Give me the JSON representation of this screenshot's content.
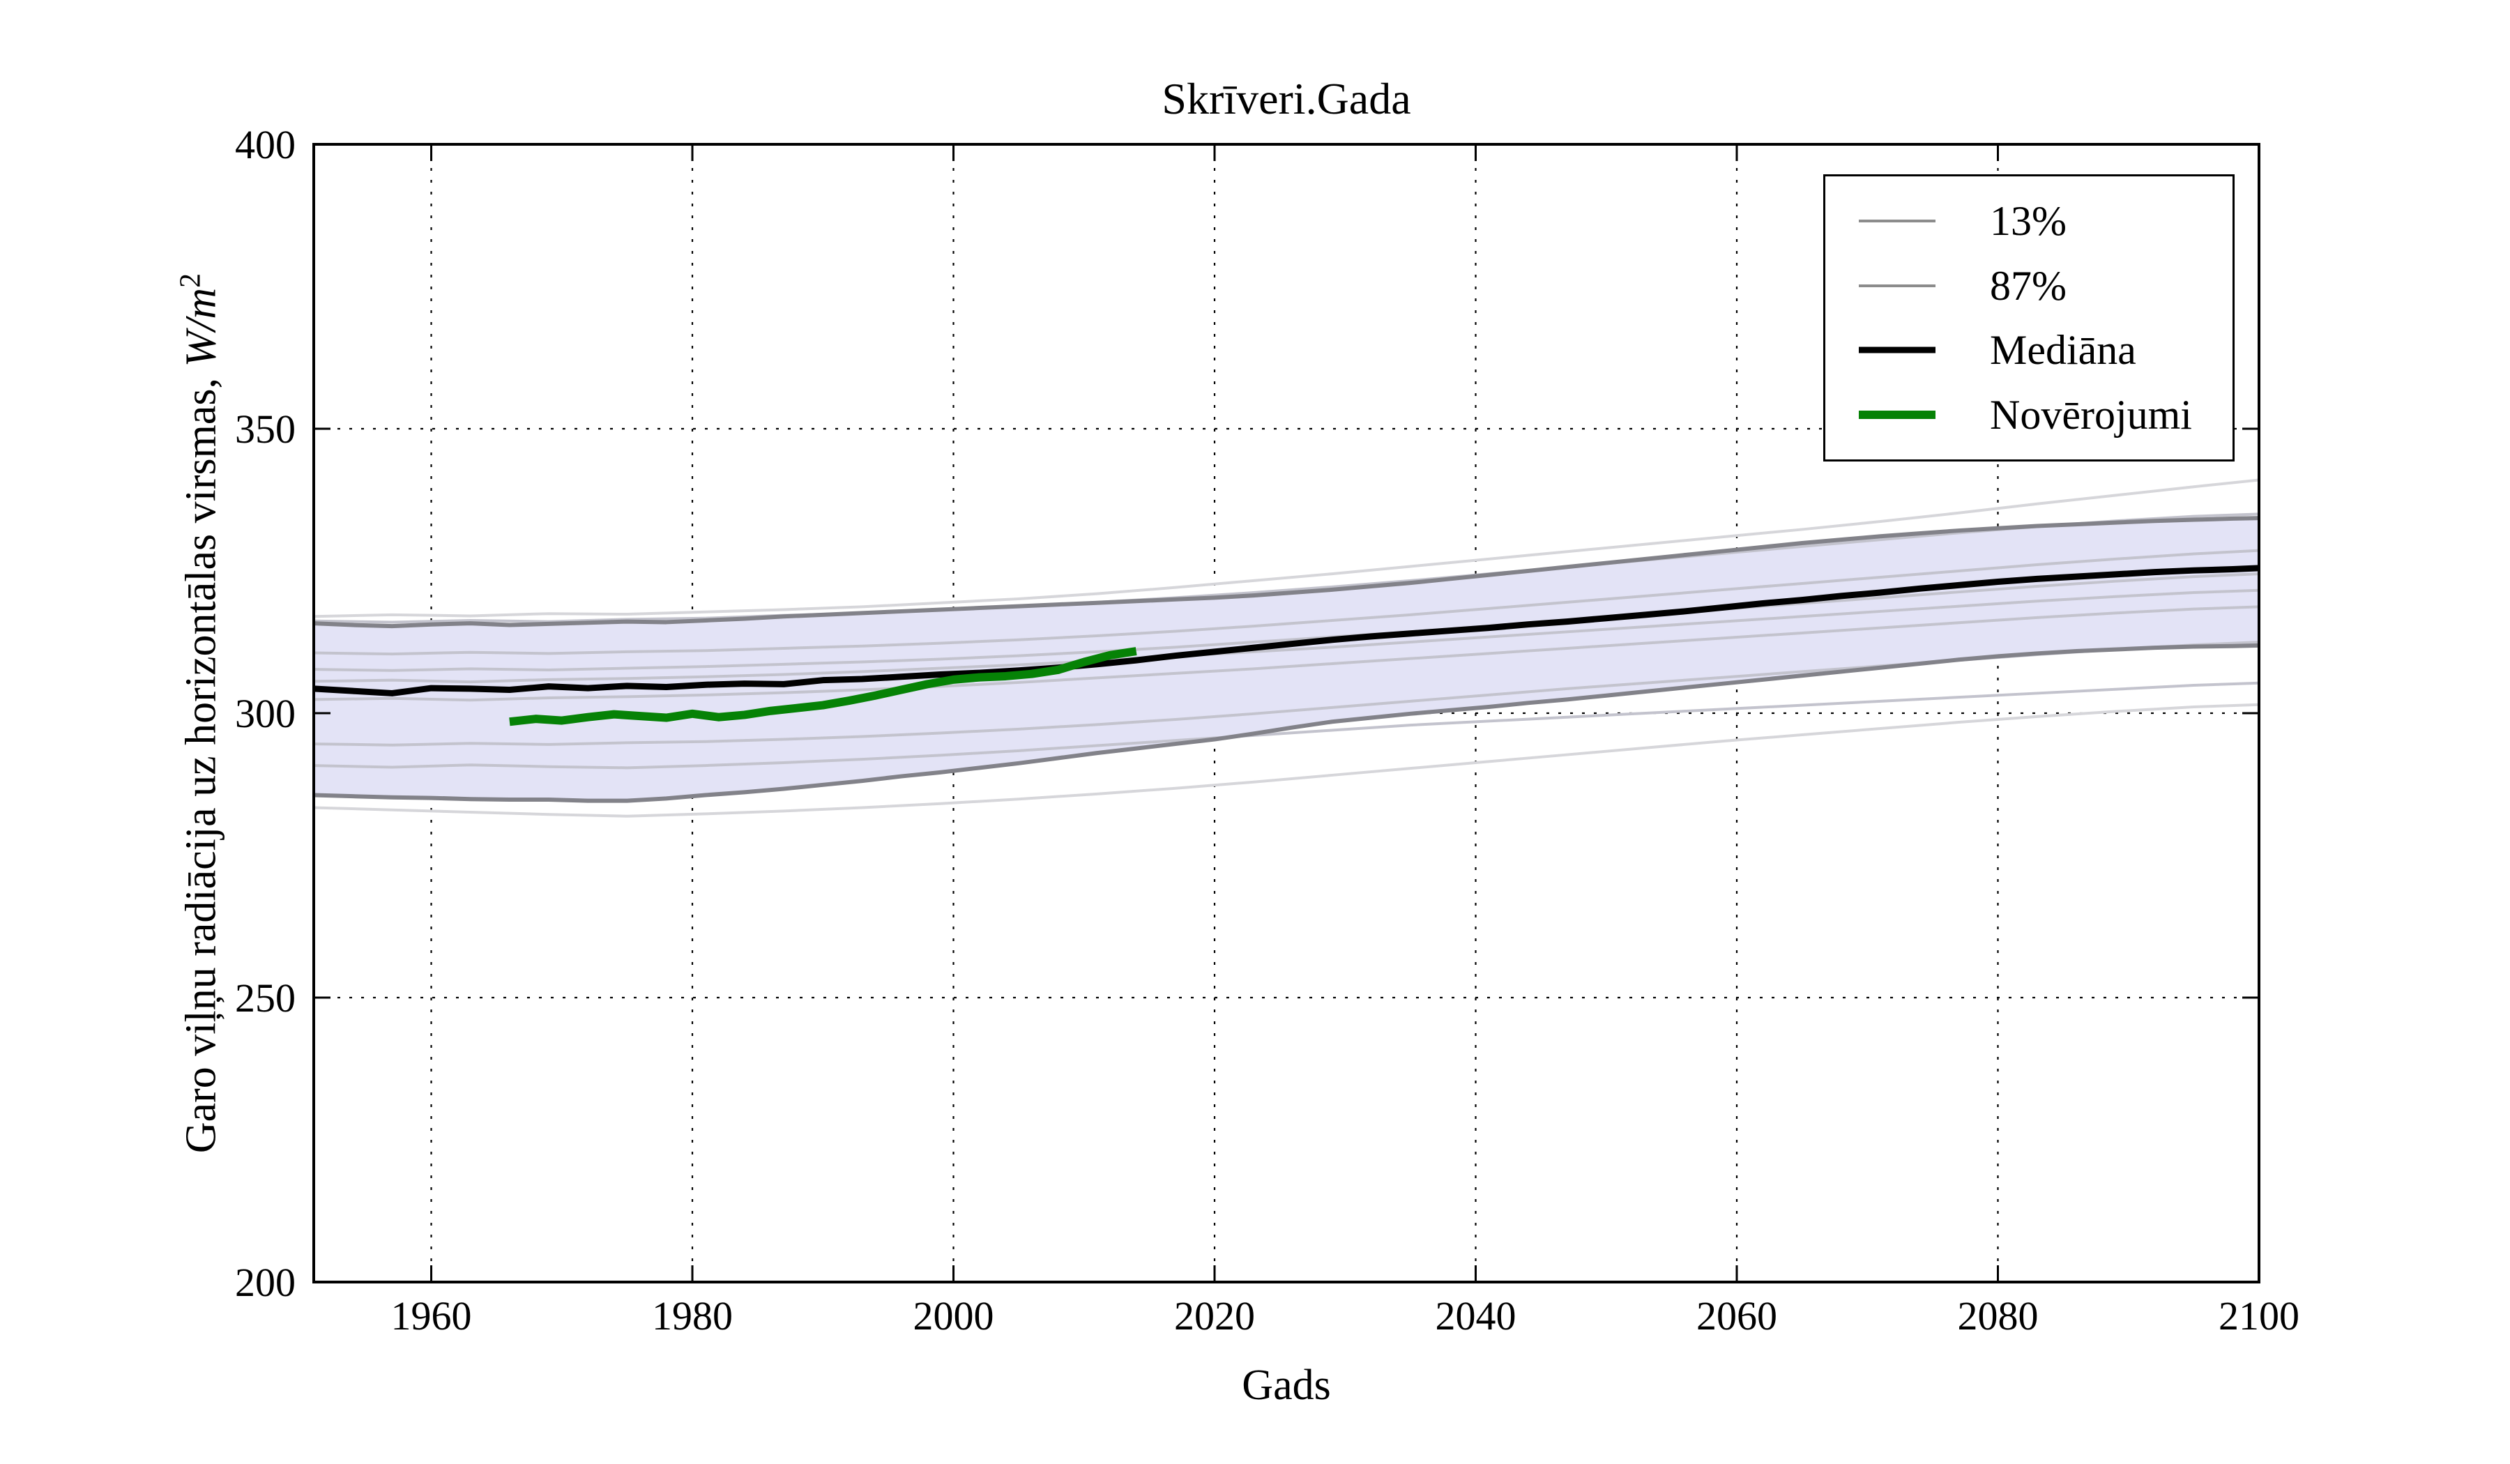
{
  "title": "Skrīveri.Gada",
  "axes": {
    "xlabel": "Gads",
    "ylabel_text": "Garo viļņu radiācija uz horizontālas virsmas, ",
    "ylabel_math": "W/m",
    "ylabel_sup": "2",
    "xlim": [
      1951,
      2100
    ],
    "ylim": [
      200,
      400
    ],
    "xticks": [
      1960,
      1980,
      2000,
      2020,
      2040,
      2060,
      2080,
      2100
    ],
    "yticks": [
      200,
      250,
      300,
      350,
      400
    ],
    "grid": "dotted"
  },
  "legend": {
    "position": "upper-right",
    "items": [
      {
        "label": "13%",
        "color": "#8c8c8c",
        "width": 4
      },
      {
        "label": "87%",
        "color": "#8c8c8c",
        "width": 4
      },
      {
        "label": "Mediāna",
        "color": "#000000",
        "width": 9
      },
      {
        "label": "Novērojumi",
        "color": "#068206",
        "width": 12
      }
    ]
  },
  "colors": {
    "background": "#ffffff",
    "band_fill": "#e3e3f6",
    "band_edge": "#828289",
    "run_line": "#c3c3cd",
    "run_line_faint": "#d6d6da",
    "median": "#000000",
    "observations": "#068206",
    "grid": "#000000"
  },
  "chart_data": {
    "type": "line",
    "title": "Skrīveri.Gada",
    "xlabel": "Gads",
    "ylabel": "Garo viļņu radiācija uz horizontālas virsmas, W/m2",
    "xlim": [
      1951,
      2100
    ],
    "ylim": [
      200,
      400
    ],
    "band": {
      "fill": "#e3e3f6",
      "upper_name": "87%",
      "lower_name": "13%",
      "x": [
        1951,
        1954,
        1957,
        1960,
        1963,
        1966,
        1969,
        1972,
        1975,
        1978,
        1981,
        1984,
        1987,
        1990,
        1993,
        1996,
        1999,
        2002,
        2005,
        2008,
        2011,
        2014,
        2017,
        2020,
        2023,
        2026,
        2029,
        2032,
        2035,
        2038,
        2041,
        2044,
        2047,
        2050,
        2053,
        2056,
        2059,
        2062,
        2065,
        2068,
        2071,
        2074,
        2077,
        2080,
        2083,
        2086,
        2089,
        2092,
        2095,
        2098,
        2100
      ],
      "upper": [
        315.8,
        315.5,
        315.3,
        315.6,
        315.8,
        315.5,
        315.7,
        315.9,
        316.1,
        316.0,
        316.3,
        316.6,
        317.0,
        317.3,
        317.6,
        317.9,
        318.2,
        318.5,
        318.8,
        319.1,
        319.4,
        319.7,
        320.0,
        320.3,
        320.7,
        321.2,
        321.7,
        322.3,
        322.9,
        323.6,
        324.3,
        325.0,
        325.7,
        326.4,
        327.1,
        327.8,
        328.5,
        329.2,
        329.9,
        330.5,
        331.1,
        331.6,
        332.1,
        332.5,
        332.9,
        333.2,
        333.5,
        333.8,
        334.0,
        334.2,
        334.3
      ],
      "lower": [
        285.6,
        285.4,
        285.2,
        285.1,
        284.9,
        284.8,
        284.8,
        284.6,
        284.6,
        285.0,
        285.6,
        286.1,
        286.7,
        287.4,
        288.1,
        288.9,
        289.6,
        290.4,
        291.2,
        292.1,
        293.0,
        293.8,
        294.6,
        295.4,
        296.4,
        297.5,
        298.5,
        299.2,
        299.9,
        300.5,
        301.1,
        301.8,
        302.4,
        303.1,
        303.8,
        304.5,
        305.2,
        305.9,
        306.6,
        307.3,
        308.0,
        308.7,
        309.4,
        310.0,
        310.5,
        310.9,
        311.2,
        311.5,
        311.7,
        311.8,
        311.9
      ]
    },
    "series": [
      {
        "name": "run-1",
        "role": "model-run",
        "color": "#d6d6da",
        "width": 4,
        "x": [
          1951,
          1957,
          1963,
          1969,
          1975,
          1981,
          1987,
          1993,
          1999,
          2005,
          2011,
          2017,
          2023,
          2029,
          2035,
          2041,
          2047,
          2053,
          2059,
          2065,
          2071,
          2077,
          2083,
          2089,
          2095,
          2100
        ],
        "y": [
          317.0,
          317.3,
          317.1,
          317.5,
          317.4,
          317.8,
          318.2,
          318.7,
          319.4,
          320.1,
          321.0,
          322.1,
          323.3,
          324.5,
          325.8,
          327.1,
          328.4,
          329.7,
          331.0,
          332.3,
          333.7,
          335.2,
          336.8,
          338.3,
          339.8,
          341.0
        ]
      },
      {
        "name": "run-2",
        "role": "model-run",
        "color": "#c3c3cd",
        "width": 4,
        "x": [
          1951,
          1957,
          1963,
          1969,
          1975,
          1981,
          1987,
          1993,
          1999,
          2005,
          2011,
          2017,
          2023,
          2029,
          2035,
          2041,
          2047,
          2053,
          2059,
          2065,
          2071,
          2077,
          2083,
          2089,
          2095,
          2100
        ],
        "y": [
          316.2,
          316.0,
          316.3,
          316.1,
          316.5,
          316.7,
          317.2,
          317.6,
          318.2,
          318.8,
          319.5,
          320.3,
          321.2,
          322.2,
          323.3,
          324.5,
          325.7,
          326.9,
          328.1,
          329.3,
          330.5,
          331.7,
          332.8,
          333.8,
          334.6,
          335.0
        ]
      },
      {
        "name": "run-3",
        "role": "model-run",
        "color": "#c3c3cd",
        "width": 4,
        "x": [
          1951,
          1957,
          1963,
          1969,
          1975,
          1981,
          1987,
          1993,
          1999,
          2005,
          2011,
          2017,
          2023,
          2029,
          2035,
          2041,
          2047,
          2053,
          2059,
          2065,
          2071,
          2077,
          2083,
          2089,
          2095,
          2100
        ],
        "y": [
          310.6,
          310.4,
          310.7,
          310.5,
          310.8,
          311.0,
          311.4,
          311.8,
          312.3,
          312.9,
          313.6,
          314.4,
          315.3,
          316.3,
          317.3,
          318.4,
          319.5,
          320.6,
          321.7,
          322.8,
          323.9,
          325.0,
          326.1,
          327.1,
          328.0,
          328.6
        ]
      },
      {
        "name": "run-4",
        "role": "model-run",
        "color": "#c3c3cd",
        "width": 4,
        "x": [
          1951,
          1957,
          1963,
          1969,
          1975,
          1981,
          1987,
          1993,
          1999,
          2005,
          2011,
          2017,
          2023,
          2029,
          2035,
          2041,
          2047,
          2053,
          2059,
          2065,
          2071,
          2077,
          2083,
          2089,
          2095,
          2100
        ],
        "y": [
          307.7,
          307.5,
          307.8,
          307.6,
          307.9,
          308.2,
          308.6,
          309.0,
          309.5,
          310.1,
          310.8,
          311.6,
          312.5,
          313.4,
          314.3,
          315.3,
          316.3,
          317.3,
          318.3,
          319.3,
          320.3,
          321.3,
          322.3,
          323.2,
          324.0,
          324.5
        ]
      },
      {
        "name": "run-5",
        "role": "model-run",
        "color": "#c3c3cd",
        "width": 4,
        "x": [
          1951,
          1957,
          1963,
          1969,
          1975,
          1981,
          1987,
          1993,
          1999,
          2005,
          2011,
          2017,
          2023,
          2029,
          2035,
          2041,
          2047,
          2053,
          2059,
          2065,
          2071,
          2077,
          2083,
          2089,
          2095,
          2100
        ],
        "y": [
          305.6,
          305.8,
          305.5,
          305.9,
          306.1,
          306.4,
          306.8,
          307.3,
          307.9,
          308.5,
          309.2,
          310.0,
          310.8,
          311.6,
          312.5,
          313.4,
          314.3,
          315.2,
          316.1,
          317.0,
          317.9,
          318.8,
          319.7,
          320.5,
          321.2,
          321.6
        ]
      },
      {
        "name": "run-6",
        "role": "model-run",
        "color": "#c3c3cd",
        "width": 4,
        "x": [
          1951,
          1957,
          1963,
          1969,
          1975,
          1981,
          1987,
          1993,
          1999,
          2005,
          2011,
          2017,
          2023,
          2029,
          2035,
          2041,
          2047,
          2053,
          2059,
          2065,
          2071,
          2077,
          2083,
          2089,
          2095,
          2100
        ],
        "y": [
          302.4,
          302.6,
          302.3,
          302.7,
          302.9,
          303.2,
          303.6,
          304.1,
          304.7,
          305.4,
          306.2,
          307.0,
          307.8,
          308.7,
          309.6,
          310.5,
          311.4,
          312.3,
          313.2,
          314.1,
          315.0,
          315.9,
          316.8,
          317.6,
          318.3,
          318.7
        ]
      },
      {
        "name": "run-7",
        "role": "model-run",
        "color": "#c3c3cd",
        "width": 4,
        "x": [
          1951,
          1957,
          1963,
          1969,
          1975,
          1981,
          1987,
          1993,
          1999,
          2005,
          2011,
          2017,
          2023,
          2029,
          2035,
          2041,
          2047,
          2053,
          2059,
          2065,
          2071,
          2077,
          2083,
          2089,
          2095,
          2100
        ],
        "y": [
          294.6,
          294.4,
          294.7,
          294.5,
          294.8,
          295.0,
          295.4,
          295.9,
          296.5,
          297.2,
          298.0,
          298.9,
          299.9,
          301.0,
          302.1,
          303.2,
          304.3,
          305.3,
          306.3,
          307.3,
          308.3,
          309.3,
          310.3,
          311.2,
          312.0,
          312.5
        ]
      },
      {
        "name": "run-8",
        "role": "model-run",
        "color": "#c3c3cd",
        "width": 4,
        "x": [
          1951,
          1957,
          1963,
          1969,
          1975,
          1981,
          1987,
          1993,
          1999,
          2005,
          2011,
          2017,
          2023,
          2029,
          2035,
          2041,
          2047,
          2053,
          2059,
          2065,
          2071,
          2077,
          2083,
          2089,
          2095,
          2100
        ],
        "y": [
          290.8,
          290.5,
          290.9,
          290.6,
          290.4,
          290.8,
          291.3,
          291.9,
          292.6,
          293.4,
          294.3,
          295.2,
          296.1,
          297.0,
          297.9,
          298.6,
          299.3,
          300.0,
          300.7,
          301.4,
          302.1,
          302.8,
          303.5,
          304.2,
          304.9,
          305.3
        ]
      },
      {
        "name": "run-9",
        "role": "model-run",
        "color": "#d6d6da",
        "width": 4,
        "x": [
          1951,
          1957,
          1963,
          1969,
          1975,
          1981,
          1987,
          1993,
          1999,
          2005,
          2011,
          2017,
          2023,
          2029,
          2035,
          2041,
          2047,
          2053,
          2059,
          2065,
          2071,
          2077,
          2083,
          2089,
          2095,
          2100
        ],
        "y": [
          283.4,
          283.0,
          282.6,
          282.2,
          281.9,
          282.3,
          282.8,
          283.4,
          284.1,
          284.9,
          285.8,
          286.8,
          287.9,
          289.1,
          290.3,
          291.5,
          292.7,
          293.9,
          295.1,
          296.2,
          297.3,
          298.4,
          299.4,
          300.3,
          301.1,
          301.5
        ]
      },
      {
        "name": "87%",
        "role": "percentile-upper",
        "color": "#828289",
        "width": 6,
        "x": [
          1951,
          1954,
          1957,
          1960,
          1963,
          1966,
          1969,
          1972,
          1975,
          1978,
          1981,
          1984,
          1987,
          1990,
          1993,
          1996,
          1999,
          2002,
          2005,
          2008,
          2011,
          2014,
          2017,
          2020,
          2023,
          2026,
          2029,
          2032,
          2035,
          2038,
          2041,
          2044,
          2047,
          2050,
          2053,
          2056,
          2059,
          2062,
          2065,
          2068,
          2071,
          2074,
          2077,
          2080,
          2083,
          2086,
          2089,
          2092,
          2095,
          2098,
          2100
        ],
        "y": [
          315.8,
          315.5,
          315.3,
          315.6,
          315.8,
          315.5,
          315.7,
          315.9,
          316.1,
          316.0,
          316.3,
          316.6,
          317.0,
          317.3,
          317.6,
          317.9,
          318.2,
          318.5,
          318.8,
          319.1,
          319.4,
          319.7,
          320.0,
          320.3,
          320.7,
          321.2,
          321.7,
          322.3,
          322.9,
          323.6,
          324.3,
          325.0,
          325.7,
          326.4,
          327.1,
          327.8,
          328.5,
          329.2,
          329.9,
          330.5,
          331.1,
          331.6,
          332.1,
          332.5,
          332.9,
          333.2,
          333.5,
          333.8,
          334.0,
          334.2,
          334.3
        ]
      },
      {
        "name": "13%",
        "role": "percentile-lower",
        "color": "#828289",
        "width": 6,
        "x": [
          1951,
          1954,
          1957,
          1960,
          1963,
          1966,
          1969,
          1972,
          1975,
          1978,
          1981,
          1984,
          1987,
          1990,
          1993,
          1996,
          1999,
          2002,
          2005,
          2008,
          2011,
          2014,
          2017,
          2020,
          2023,
          2026,
          2029,
          2032,
          2035,
          2038,
          2041,
          2044,
          2047,
          2050,
          2053,
          2056,
          2059,
          2062,
          2065,
          2068,
          2071,
          2074,
          2077,
          2080,
          2083,
          2086,
          2089,
          2092,
          2095,
          2098,
          2100
        ],
        "y": [
          285.6,
          285.4,
          285.2,
          285.1,
          284.9,
          284.8,
          284.8,
          284.6,
          284.6,
          285.0,
          285.6,
          286.1,
          286.7,
          287.4,
          288.1,
          288.9,
          289.6,
          290.4,
          291.2,
          292.1,
          293.0,
          293.8,
          294.6,
          295.4,
          296.4,
          297.5,
          298.5,
          299.2,
          299.9,
          300.5,
          301.1,
          301.8,
          302.4,
          303.1,
          303.8,
          304.5,
          305.2,
          305.9,
          306.6,
          307.3,
          308.0,
          308.7,
          309.4,
          310.0,
          310.5,
          310.9,
          311.2,
          311.5,
          311.7,
          311.8,
          311.9
        ]
      },
      {
        "name": "Mediāna",
        "role": "median",
        "color": "#000000",
        "width": 9,
        "x": [
          1951,
          1954,
          1957,
          1960,
          1963,
          1966,
          1969,
          1972,
          1975,
          1978,
          1981,
          1984,
          1987,
          1990,
          1993,
          1996,
          1999,
          2002,
          2005,
          2008,
          2011,
          2014,
          2017,
          2020,
          2023,
          2026,
          2029,
          2032,
          2035,
          2038,
          2041,
          2044,
          2047,
          2050,
          2053,
          2056,
          2059,
          2062,
          2065,
          2068,
          2071,
          2074,
          2077,
          2080,
          2083,
          2086,
          2089,
          2092,
          2095,
          2098,
          2100
        ],
        "y": [
          304.3,
          303.9,
          303.5,
          304.4,
          304.3,
          304.1,
          304.7,
          304.4,
          304.8,
          304.6,
          305.0,
          305.2,
          305.1,
          305.8,
          306.0,
          306.4,
          306.8,
          307.1,
          307.5,
          308.0,
          308.6,
          309.3,
          310.1,
          310.8,
          311.5,
          312.2,
          312.9,
          313.5,
          314.0,
          314.5,
          315.0,
          315.6,
          316.1,
          316.7,
          317.3,
          317.9,
          318.6,
          319.3,
          319.9,
          320.6,
          321.2,
          321.9,
          322.5,
          323.1,
          323.6,
          324.0,
          324.4,
          324.8,
          325.1,
          325.3,
          325.5
        ]
      },
      {
        "name": "Novērojumi",
        "role": "observations",
        "color": "#068206",
        "width": 12,
        "x": [
          1966,
          1968,
          1970,
          1972,
          1974,
          1976,
          1978,
          1980,
          1982,
          1984,
          1986,
          1988,
          1990,
          1992,
          1994,
          1996,
          1998,
          2000,
          2002,
          2004,
          2006,
          2008,
          2010,
          2012,
          2014
        ],
        "y": [
          298.5,
          299.0,
          298.7,
          299.3,
          299.8,
          299.5,
          299.2,
          299.9,
          299.3,
          299.7,
          300.4,
          300.9,
          301.4,
          302.2,
          303.1,
          304.1,
          305.1,
          305.9,
          306.3,
          306.5,
          306.9,
          307.6,
          309.0,
          310.2,
          310.9
        ]
      }
    ]
  }
}
